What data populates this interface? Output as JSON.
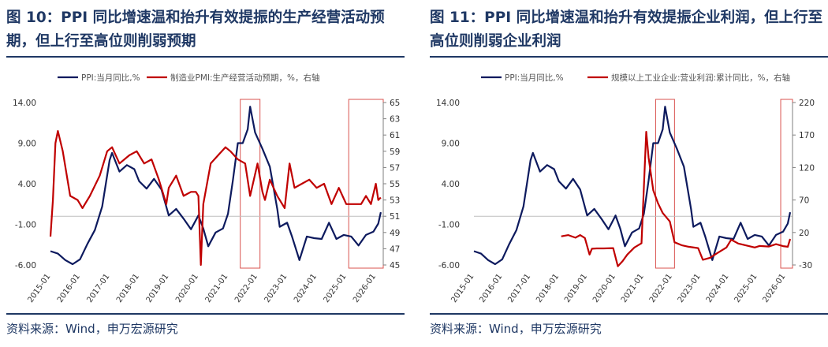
{
  "colors": {
    "navy": "#1f3864",
    "series_blue": "#0d1a5e",
    "series_red": "#c00000",
    "box": "#d9534f"
  },
  "chart_data": [
    {
      "type": "line",
      "title": "图 10：PPI 同比增速温和抬升有效提振的生产经营活动预期，但上行至高位则削弱预期",
      "source": "资料来源：Wind，申万宏源研究",
      "x_ticks": [
        "2015-01",
        "2016-01",
        "2017-01",
        "2018-01",
        "2019-01",
        "2020-01",
        "2021-01",
        "2022-01",
        "2023-01",
        "2024-01",
        "2025-01",
        "2026-01"
      ],
      "xlim": [
        "2015-01",
        "2026-04"
      ],
      "y_left": {
        "ticks": [
          "14.00",
          "9.00",
          "4.00",
          "-1.00",
          "-6.00"
        ],
        "ylim": [
          -6,
          14
        ]
      },
      "y_right": {
        "ticks": [
          "65",
          "63",
          "61",
          "59",
          "57",
          "55",
          "53",
          "51",
          "49",
          "47",
          "45"
        ],
        "ylim": [
          45,
          65
        ]
      },
      "series": [
        {
          "name": "PPI:当月同比,%",
          "axis": "left",
          "color": "#0d1a5e",
          "points": [
            [
              "2015-01",
              -4.3
            ],
            [
              "2015-04",
              -4.6
            ],
            [
              "2015-07",
              -5.4
            ],
            [
              "2015-10",
              -5.9
            ],
            [
              "2016-01",
              -5.3
            ],
            [
              "2016-04",
              -3.4
            ],
            [
              "2016-07",
              -1.7
            ],
            [
              "2016-10",
              1.2
            ],
            [
              "2017-01",
              6.9
            ],
            [
              "2017-02",
              7.8
            ],
            [
              "2017-05",
              5.5
            ],
            [
              "2017-08",
              6.3
            ],
            [
              "2017-11",
              5.8
            ],
            [
              "2018-01",
              4.3
            ],
            [
              "2018-04",
              3.4
            ],
            [
              "2018-07",
              4.6
            ],
            [
              "2018-10",
              3.3
            ],
            [
              "2019-01",
              0.1
            ],
            [
              "2019-04",
              0.9
            ],
            [
              "2019-07",
              -0.3
            ],
            [
              "2019-10",
              -1.6
            ],
            [
              "2020-01",
              0.1
            ],
            [
              "2020-03",
              -1.5
            ],
            [
              "2020-05",
              -3.7
            ],
            [
              "2020-08",
              -2.0
            ],
            [
              "2020-11",
              -1.5
            ],
            [
              "2021-01",
              0.3
            ],
            [
              "2021-03",
              4.4
            ],
            [
              "2021-05",
              9.0
            ],
            [
              "2021-07",
              9.0
            ],
            [
              "2021-09",
              10.7
            ],
            [
              "2021-10",
              13.5
            ],
            [
              "2021-12",
              10.3
            ],
            [
              "2022-03",
              8.3
            ],
            [
              "2022-06",
              6.1
            ],
            [
              "2022-09",
              0.9
            ],
            [
              "2022-10",
              -1.3
            ],
            [
              "2023-01",
              -0.8
            ],
            [
              "2023-03",
              -2.5
            ],
            [
              "2023-06",
              -5.4
            ],
            [
              "2023-09",
              -2.5
            ],
            [
              "2023-12",
              -2.7
            ],
            [
              "2024-03",
              -2.8
            ],
            [
              "2024-06",
              -0.8
            ],
            [
              "2024-09",
              -2.8
            ],
            [
              "2024-12",
              -2.3
            ],
            [
              "2025-03",
              -2.5
            ],
            [
              "2025-06",
              -3.6
            ],
            [
              "2025-09",
              -2.3
            ],
            [
              "2025-12",
              -1.9
            ],
            [
              "2026-02",
              -0.9
            ],
            [
              "2026-03",
              0.5
            ]
          ]
        },
        {
          "name": "制造业PMI:生产经营活动预期，%，右轴",
          "axis": "right",
          "color": "#c00000",
          "points": [
            [
              "2015-01",
              48.5
            ],
            [
              "2015-02",
              53.0
            ],
            [
              "2015-03",
              60.0
            ],
            [
              "2015-04",
              61.5
            ],
            [
              "2015-06",
              59.0
            ],
            [
              "2015-09",
              53.5
            ],
            [
              "2015-12",
              53.0
            ],
            [
              "2016-02",
              52.0
            ],
            [
              "2016-05",
              53.5
            ],
            [
              "2016-09",
              56.0
            ],
            [
              "2016-12",
              59.0
            ],
            [
              "2017-02",
              59.5
            ],
            [
              "2017-05",
              57.5
            ],
            [
              "2017-09",
              58.5
            ],
            [
              "2017-12",
              59.0
            ],
            [
              "2018-03",
              57.5
            ],
            [
              "2018-06",
              58.0
            ],
            [
              "2018-09",
              55.5
            ],
            [
              "2018-12",
              52.5
            ],
            [
              "2019-01",
              54.5
            ],
            [
              "2019-04",
              56.0
            ],
            [
              "2019-07",
              53.5
            ],
            [
              "2019-10",
              54.0
            ],
            [
              "2019-12",
              54.0
            ],
            [
              "2020-01",
              53.5
            ],
            [
              "2020-02",
              45.0
            ],
            [
              "2020-03",
              52.5
            ],
            [
              "2020-06",
              57.5
            ],
            [
              "2020-09",
              58.5
            ],
            [
              "2020-12",
              59.5
            ],
            [
              "2021-02",
              59.0
            ],
            [
              "2021-05",
              58.0
            ],
            [
              "2021-08",
              57.5
            ],
            [
              "2021-10",
              53.5
            ],
            [
              "2022-01",
              57.5
            ],
            [
              "2022-03",
              54.0
            ],
            [
              "2022-04",
              53.0
            ],
            [
              "2022-06",
              55.5
            ],
            [
              "2022-09",
              53.5
            ],
            [
              "2022-12",
              52.0
            ],
            [
              "2023-02",
              57.5
            ],
            [
              "2023-04",
              54.5
            ],
            [
              "2023-07",
              55.0
            ],
            [
              "2023-10",
              55.5
            ],
            [
              "2024-01",
              54.5
            ],
            [
              "2024-04",
              55.0
            ],
            [
              "2024-07",
              52.5
            ],
            [
              "2024-10",
              54.5
            ],
            [
              "2025-01",
              52.5
            ],
            [
              "2025-04",
              52.5
            ],
            [
              "2025-07",
              52.5
            ],
            [
              "2025-09",
              53.5
            ],
            [
              "2025-11",
              52.5
            ],
            [
              "2026-01",
              55.0
            ],
            [
              "2026-02",
              53.0
            ],
            [
              "2026-03",
              53.3
            ]
          ]
        }
      ],
      "highlight_periods": [
        [
          "2021-06",
          "2022-02"
        ],
        [
          "2025-02",
          "2026-04"
        ]
      ]
    },
    {
      "type": "line",
      "title": "图 11：PPI 同比增速温和抬升有效提振企业利润，但上行至高位则削弱企业利润",
      "source": "资料来源：Wind，申万宏源研究",
      "x_ticks": [
        "2015-01",
        "2016-01",
        "2017-01",
        "2018-01",
        "2019-01",
        "2020-01",
        "2021-01",
        "2022-01",
        "2023-01",
        "2024-01",
        "2025-01",
        "2026-01"
      ],
      "xlim": [
        "2015-01",
        "2026-04"
      ],
      "y_left": {
        "ticks": [
          "14.00",
          "9.00",
          "4.00",
          "-1.00",
          "-6.00"
        ],
        "ylim": [
          -6,
          14
        ]
      },
      "y_right": {
        "ticks": [
          "220",
          "170",
          "120",
          "70",
          "20",
          "-30"
        ],
        "ylim": [
          -30,
          220
        ]
      },
      "series": [
        {
          "name": "PPI:当月同比,%",
          "axis": "left",
          "color": "#0d1a5e",
          "points": [
            [
              "2015-01",
              -4.3
            ],
            [
              "2015-04",
              -4.6
            ],
            [
              "2015-07",
              -5.4
            ],
            [
              "2015-10",
              -5.9
            ],
            [
              "2016-01",
              -5.3
            ],
            [
              "2016-04",
              -3.4
            ],
            [
              "2016-07",
              -1.7
            ],
            [
              "2016-10",
              1.2
            ],
            [
              "2017-01",
              6.9
            ],
            [
              "2017-02",
              7.8
            ],
            [
              "2017-05",
              5.5
            ],
            [
              "2017-08",
              6.3
            ],
            [
              "2017-11",
              5.8
            ],
            [
              "2018-01",
              4.3
            ],
            [
              "2018-04",
              3.4
            ],
            [
              "2018-07",
              4.6
            ],
            [
              "2018-10",
              3.3
            ],
            [
              "2019-01",
              0.1
            ],
            [
              "2019-04",
              0.9
            ],
            [
              "2019-07",
              -0.3
            ],
            [
              "2019-10",
              -1.6
            ],
            [
              "2020-01",
              0.1
            ],
            [
              "2020-03",
              -1.5
            ],
            [
              "2020-05",
              -3.7
            ],
            [
              "2020-08",
              -2.0
            ],
            [
              "2020-11",
              -1.5
            ],
            [
              "2021-01",
              0.3
            ],
            [
              "2021-03",
              4.4
            ],
            [
              "2021-05",
              9.0
            ],
            [
              "2021-07",
              9.0
            ],
            [
              "2021-09",
              10.7
            ],
            [
              "2021-10",
              13.5
            ],
            [
              "2021-12",
              10.3
            ],
            [
              "2022-03",
              8.3
            ],
            [
              "2022-06",
              6.1
            ],
            [
              "2022-09",
              0.9
            ],
            [
              "2022-10",
              -1.3
            ],
            [
              "2023-01",
              -0.8
            ],
            [
              "2023-03",
              -2.5
            ],
            [
              "2023-06",
              -5.4
            ],
            [
              "2023-09",
              -2.5
            ],
            [
              "2023-12",
              -2.7
            ],
            [
              "2024-03",
              -2.8
            ],
            [
              "2024-06",
              -0.8
            ],
            [
              "2024-09",
              -2.8
            ],
            [
              "2024-12",
              -2.3
            ],
            [
              "2025-03",
              -2.5
            ],
            [
              "2025-06",
              -3.6
            ],
            [
              "2025-09",
              -2.3
            ],
            [
              "2025-12",
              -1.9
            ],
            [
              "2026-02",
              -0.9
            ],
            [
              "2026-03",
              0.5
            ]
          ]
        },
        {
          "name": "规模以上工业企业:营业利润:累计同比，%，右轴",
          "axis": "right",
          "color": "#c00000",
          "points": [
            [
              "2018-02",
              14.0
            ],
            [
              "2018-05",
              16.0
            ],
            [
              "2018-08",
              12.0
            ],
            [
              "2018-10",
              16.0
            ],
            [
              "2018-12",
              11.5
            ],
            [
              "2019-02",
              -14.0
            ],
            [
              "2019-03",
              -5.0
            ],
            [
              "2019-05",
              -4.5
            ],
            [
              "2019-08",
              -4.5
            ],
            [
              "2019-12",
              -4.0
            ],
            [
              "2020-02",
              -32.0
            ],
            [
              "2020-04",
              -24.0
            ],
            [
              "2020-06",
              -14.0
            ],
            [
              "2020-09",
              -3.0
            ],
            [
              "2020-12",
              3.5
            ],
            [
              "2021-02",
              175.0
            ],
            [
              "2021-03",
              135.0
            ],
            [
              "2021-05",
              85.0
            ],
            [
              "2021-07",
              65.0
            ],
            [
              "2021-09",
              50.0
            ],
            [
              "2021-12",
              37.0
            ],
            [
              "2022-02",
              5.0
            ],
            [
              "2022-05",
              0.5
            ],
            [
              "2022-08",
              -2.0
            ],
            [
              "2022-12",
              -4.0
            ],
            [
              "2023-02",
              -22.0
            ],
            [
              "2023-05",
              -19.0
            ],
            [
              "2023-08",
              -12.0
            ],
            [
              "2023-12",
              -3.0
            ],
            [
              "2024-02",
              9.0
            ],
            [
              "2024-05",
              3.0
            ],
            [
              "2024-08",
              0.5
            ],
            [
              "2024-12",
              -3.0
            ],
            [
              "2025-02",
              -0.8
            ],
            [
              "2025-06",
              -1.6
            ],
            [
              "2025-09",
              2.0
            ],
            [
              "2025-12",
              -1.0
            ],
            [
              "2026-02",
              -2.0
            ],
            [
              "2026-03",
              10.0
            ]
          ]
        }
      ],
      "highlight_periods": [
        [
          "2021-06",
          "2022-02"
        ],
        [
          "2025-11",
          "2026-04"
        ]
      ]
    }
  ]
}
